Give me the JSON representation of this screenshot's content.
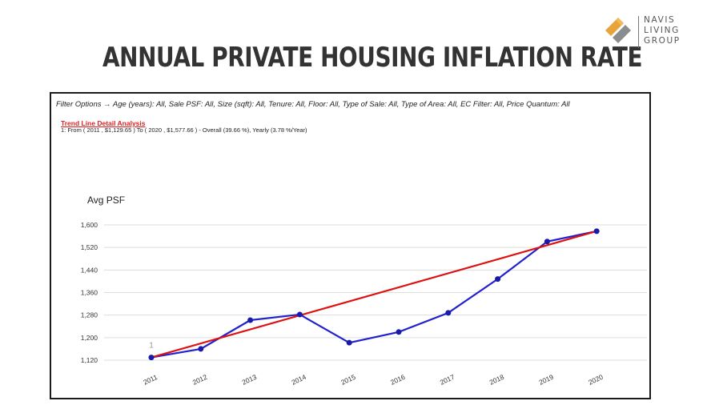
{
  "header": {
    "title": "ANNUAL PRIVATE HOUSING INFLATION RATE",
    "logo_lines": [
      "NAVIS",
      "LIVING",
      "GROUP"
    ],
    "logo_colors": [
      "#e8a33a",
      "#8a8d8f"
    ]
  },
  "filter_text": "Filter Options → Age (years): All, Sale PSF: All, Size (sqft): All, Tenure: All, Floor: All, Type of Sale: All, Type of Area: All, EC Filter: All, Price Quantum: All",
  "trend": {
    "title": "Trend Line Detail Analysis",
    "detail": "1: From ( 2011 , $1,129.65 ) To ( 2020 , $1,577.66 ) - Overall (39.66 %), Yearly (3.78 %/Year)",
    "marker_label": "1"
  },
  "chart_data": {
    "type": "line",
    "ylabel": "Avg PSF",
    "categories": [
      "2011",
      "2012",
      "2013",
      "2014",
      "2015",
      "2016",
      "2017",
      "2018",
      "2019",
      "2020"
    ],
    "yticks": [
      "1,120",
      "1,200",
      "1,280",
      "1,360",
      "1,440",
      "1,520",
      "1,600"
    ],
    "ylim": [
      1120,
      1600
    ],
    "grid": true,
    "series": [
      {
        "values": [
          1129.65,
          1160,
          1262,
          1282,
          1182,
          1220,
          1288,
          1408,
          1541,
          1577.66
        ],
        "color": "#2222cc"
      }
    ],
    "trendline": {
      "from": [
        2011,
        1129.65
      ],
      "to": [
        2020,
        1577.66
      ],
      "color": "#dd1111"
    }
  }
}
